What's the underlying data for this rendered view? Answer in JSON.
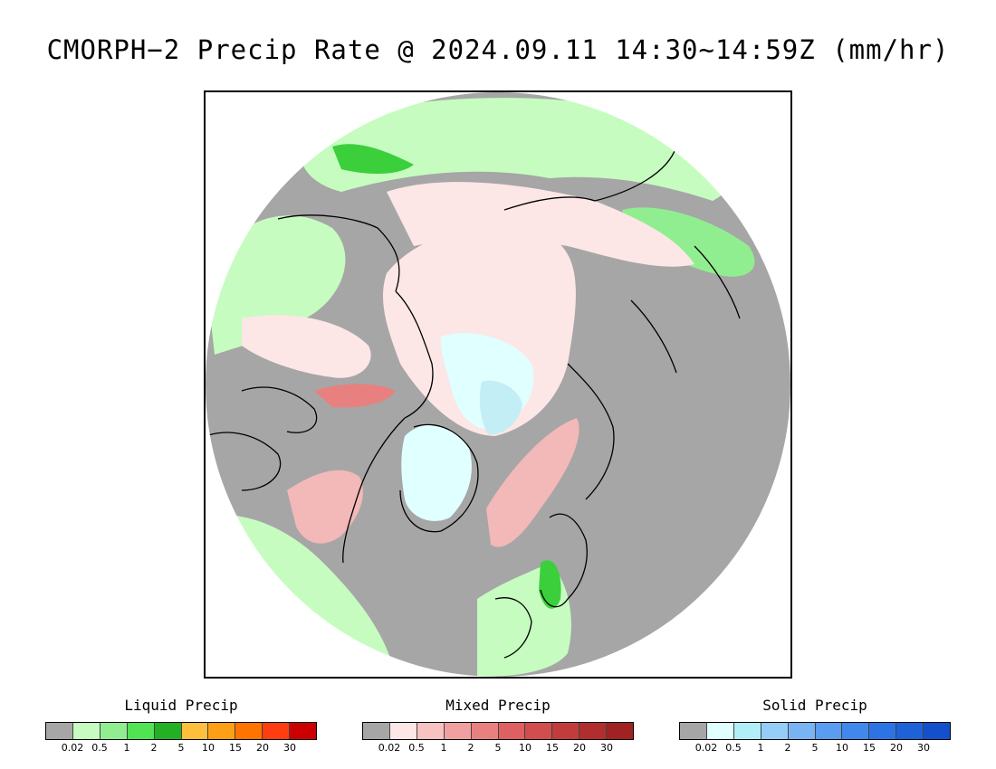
{
  "title": "CMORPH−2 Precip Rate @ 2024.09.11 14:30~14:59Z (mm/hr)",
  "legends": [
    {
      "title": "Liquid Precip",
      "colors": [
        "#a6a6a6",
        "#c6fcc0",
        "#90ee90",
        "#52e352",
        "#24b024",
        "#fdbf3c",
        "#fea016",
        "#ff7400",
        "#ff3d10",
        "#cc0000"
      ],
      "ticks": [
        "0.02",
        "0.5",
        "1",
        "2",
        "5",
        "10",
        "15",
        "20",
        "30"
      ]
    },
    {
      "title": "Mixed Precip",
      "colors": [
        "#a6a6a6",
        "#fde6e6",
        "#f8c2c2",
        "#f0a0a0",
        "#e88080",
        "#de6060",
        "#d24d4d",
        "#c23c3c",
        "#b02e2e",
        "#a02222"
      ],
      "ticks": [
        "0.02",
        "0.5",
        "1",
        "2",
        "5",
        "10",
        "15",
        "20",
        "30"
      ]
    },
    {
      "title": "Solid Precip",
      "colors": [
        "#a6a6a6",
        "#e0ffff",
        "#b0eef8",
        "#94cdf8",
        "#78b4f4",
        "#5a9cf0",
        "#4088ec",
        "#2c74e4",
        "#1e62d8",
        "#1450cc"
      ],
      "ticks": [
        "0.02",
        "0.5",
        "1",
        "2",
        "5",
        "10",
        "15",
        "20",
        "30"
      ]
    }
  ],
  "map_colors": {
    "no_precip": "#a6a6a6",
    "liquid_light": "#c6fcc0",
    "liquid_mid": "#90ee90",
    "liquid_heavy": "#3ccf3c",
    "mixed_light": "#fde6e6",
    "mixed_mid": "#f3b8b8",
    "mixed_heavy": "#e88080",
    "solid_light": "#e0ffff",
    "solid_mid": "#c4eef6",
    "coastline": "#000000"
  }
}
